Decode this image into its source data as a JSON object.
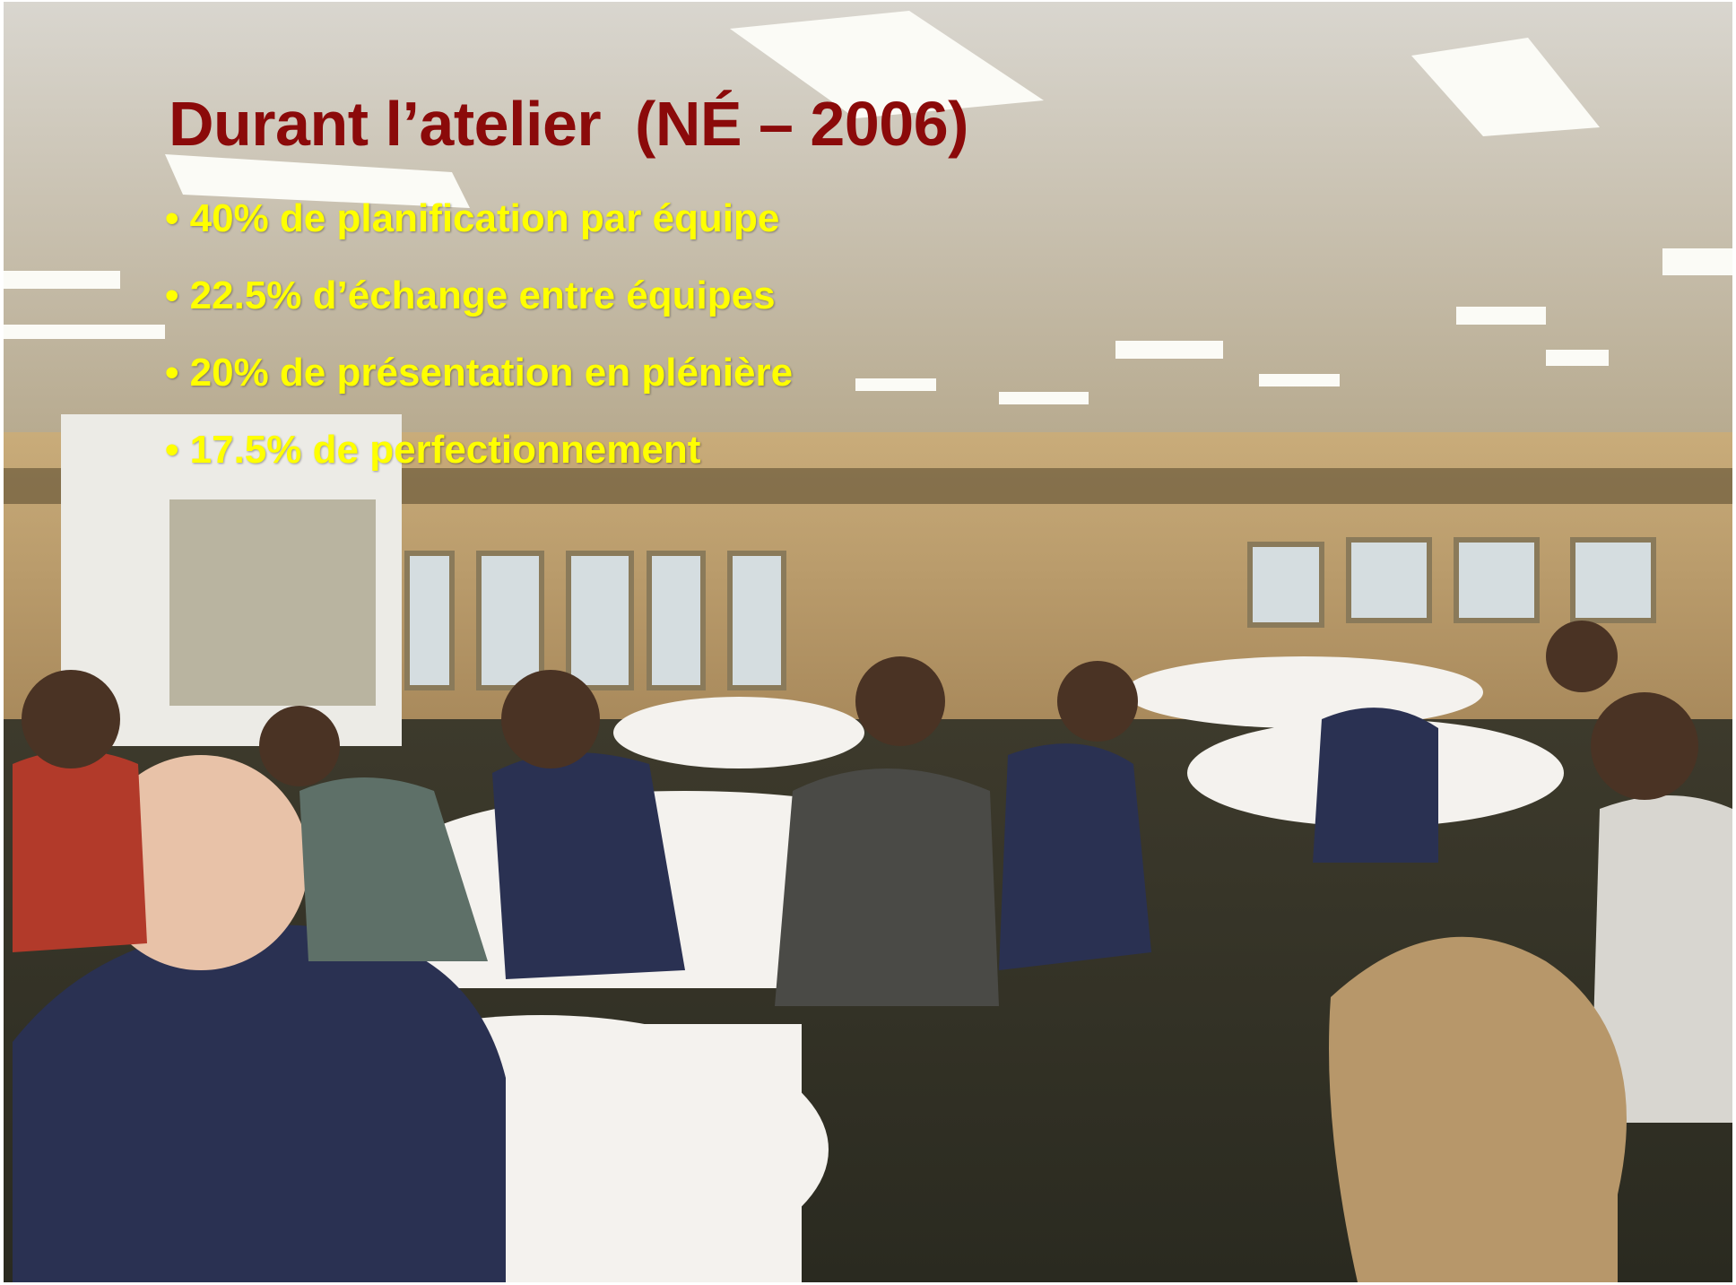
{
  "title": "Durant l’atelier  (NÉ – 2006)",
  "bullets": [
    "40% de planification par équipe",
    "22.5% d’échange entre équipes",
    "20% de présentation en plénière",
    "17.5% de perfectionnement"
  ]
}
